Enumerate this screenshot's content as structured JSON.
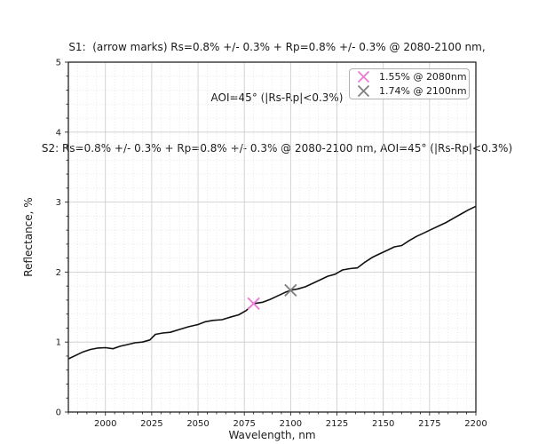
{
  "title": {
    "line1": "S1:  (arrow marks) Rs=0.8% +/- 0.3% + Rp=0.8% +/- 0.3% @ 2080-2100 nm,",
    "line2": "AOI=45° (|Rs-Rp|<0.3%)",
    "line3": "S2: Rs=0.8% +/- 0.3% + Rp=0.8% +/- 0.3% @ 2080-2100 nm, AOI=45° (|Rs-Rp|<0.3%)"
  },
  "chart_data": {
    "type": "line",
    "xlabel": "Wavelength, nm",
    "ylabel": "Reflectance, %",
    "xlim": [
      1980,
      2200
    ],
    "ylim": [
      0,
      5
    ],
    "x_major_ticks": [
      2000,
      2025,
      2050,
      2075,
      2100,
      2125,
      2150,
      2175,
      2200
    ],
    "x_minor_step": 5,
    "y_major_ticks": [
      0,
      1,
      2,
      3,
      4,
      5
    ],
    "y_minor_step": 0.2,
    "grid": {
      "major": "solid",
      "minor": "dotted"
    },
    "line_color": "#111111",
    "series": [
      {
        "name": "reflectance-curve",
        "x": [
          1980,
          1984,
          1988,
          1992,
          1996,
          2000,
          2004,
          2008,
          2012,
          2016,
          2020,
          2024,
          2027,
          2031,
          2035,
          2040,
          2045,
          2050,
          2054,
          2058,
          2063,
          2068,
          2072,
          2076,
          2080,
          2085,
          2089,
          2093,
          2097,
          2100,
          2104,
          2108,
          2112,
          2116,
          2120,
          2124,
          2128,
          2132,
          2136,
          2140,
          2144,
          2148,
          2152,
          2156,
          2160,
          2164,
          2168,
          2172,
          2176,
          2180,
          2184,
          2188,
          2192,
          2196,
          2200
        ],
        "y": [
          0.76,
          0.81,
          0.86,
          0.895,
          0.915,
          0.92,
          0.905,
          0.94,
          0.965,
          0.99,
          1.0,
          1.03,
          1.11,
          1.13,
          1.14,
          1.18,
          1.22,
          1.25,
          1.29,
          1.31,
          1.32,
          1.36,
          1.39,
          1.45,
          1.55,
          1.57,
          1.61,
          1.66,
          1.71,
          1.74,
          1.76,
          1.79,
          1.84,
          1.89,
          1.94,
          1.97,
          2.03,
          2.05,
          2.06,
          2.14,
          2.21,
          2.26,
          2.31,
          2.36,
          2.38,
          2.45,
          2.51,
          2.56,
          2.61,
          2.66,
          2.71,
          2.77,
          2.83,
          2.89,
          2.94
        ]
      }
    ],
    "markers": [
      {
        "x": 2080,
        "y": 1.55,
        "color": "#ee7ad8",
        "shape": "x",
        "label": "1.55% @ 2080nm"
      },
      {
        "x": 2100,
        "y": 1.74,
        "color": "#7f7f7f",
        "shape": "x",
        "label": "1.74% @ 2100nm"
      }
    ],
    "legend": {
      "position": "top-right",
      "entries": [
        {
          "label": "1.55% @ 2080nm",
          "color": "#ee7ad8"
        },
        {
          "label": "1.74% @ 2100nm",
          "color": "#7f7f7f"
        }
      ]
    }
  }
}
